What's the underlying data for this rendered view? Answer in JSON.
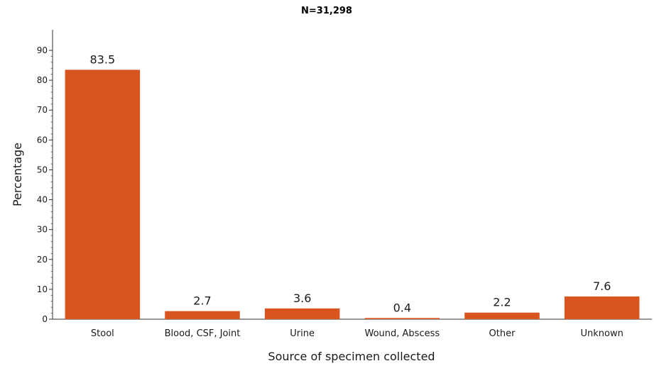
{
  "chart_data": {
    "type": "bar",
    "title": "N=31,298",
    "xlabel": "Source of specimen collected",
    "ylabel": "Percentage",
    "categories": [
      "Stool",
      "Blood, CSF, Joint",
      "Urine",
      "Wound, Abscess",
      "Other",
      "Unknown"
    ],
    "values": [
      83.5,
      2.7,
      3.6,
      0.4,
      2.2,
      7.6
    ],
    "data_labels": [
      "83.5",
      "2.7",
      "3.6",
      "0.4",
      "2.2",
      "7.6"
    ],
    "ylim": [
      0,
      90
    ],
    "yticks": [
      "0",
      "10",
      "20",
      "30",
      "40",
      "50",
      "60",
      "70",
      "80",
      "90"
    ],
    "grid": false,
    "legend": "none",
    "bar_color": "#d9541e"
  }
}
